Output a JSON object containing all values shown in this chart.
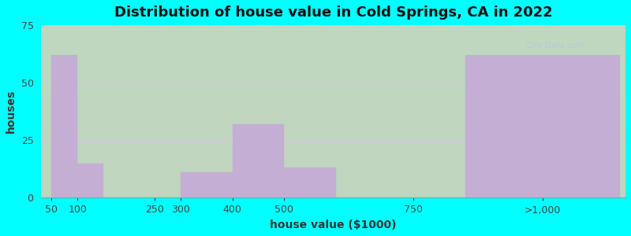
{
  "title": "Distribution of house value in Cold Springs, CA in 2022",
  "xlabel": "house value ($1000)",
  "ylabel": "houses",
  "background_color": "#00FFFF",
  "bar_color": "#c4aed4",
  "ylim": [
    0,
    75
  ],
  "yticks": [
    0,
    25,
    50,
    75
  ],
  "tick_labels": [
    "50",
    "100",
    "250",
    "300",
    "400",
    "500",
    "750",
    ">1,000"
  ],
  "tick_positions": [
    50,
    100,
    250,
    300,
    400,
    500,
    750,
    1000
  ],
  "bar_lefts": [
    50,
    100,
    300,
    400,
    500,
    850
  ],
  "bar_rights": [
    100,
    150,
    400,
    500,
    600,
    1150
  ],
  "values": [
    62,
    15,
    11,
    32,
    13,
    62
  ],
  "title_fontsize": 13,
  "axis_label_fontsize": 10,
  "tick_fontsize": 9,
  "watermark_text": "City-Data.com"
}
